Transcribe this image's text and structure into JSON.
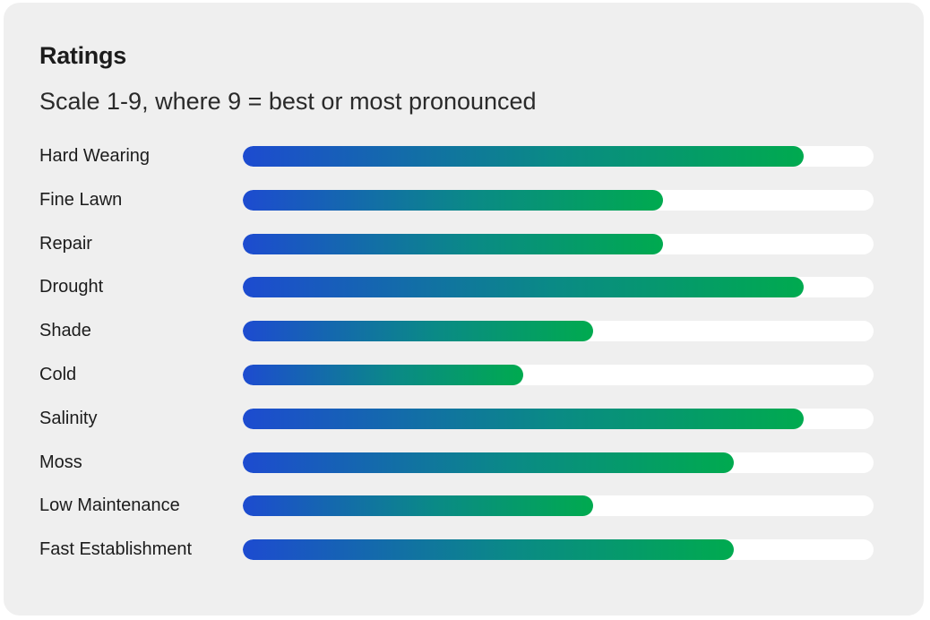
{
  "chart_data": {
    "type": "bar",
    "orientation": "horizontal",
    "title": "Ratings",
    "subtitle": "Scale 1-9, where 9 = best or most pronounced",
    "xlim": [
      0,
      9
    ],
    "categories": [
      "Hard Wearing",
      "Fine Lawn",
      "Repair",
      "Drought",
      "Shade",
      "Cold",
      "Salinity",
      "Moss",
      "Low Maintenance",
      "Fast Establishment"
    ],
    "values": [
      8,
      6,
      6,
      8,
      5,
      4,
      8,
      7,
      5,
      7
    ],
    "colors": {
      "gradient_start": "#1d4bd0",
      "gradient_end": "#00aa4f",
      "track": "#ffffff",
      "background": "#efefef"
    }
  }
}
